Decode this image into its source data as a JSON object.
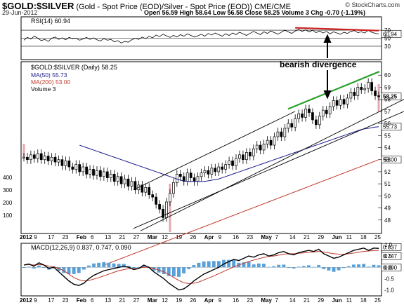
{
  "header": {
    "symbol": "$GOLD:$SILVER",
    "description": "(Gold - Spot Price (EOD)/Silver - Spot Price (EOD)) CME/CME",
    "date": "29-Jun-2012",
    "quote": "Open 56.59  High 58.64  Low 56.58  Close 58.25  Volume 3  Chg -0.70 (-1.19%)",
    "source": "© StockCharts.com"
  },
  "colors": {
    "price_bar": "#000000",
    "ma50": "#1a1a8c",
    "ma200": "#c0392b",
    "volume": "#e6a8b0",
    "trend_green": "#2ca02c",
    "rsi_red": "#cc2222",
    "macd_hist": "#5aa0d8",
    "macd_signal": "#c0392b"
  },
  "annotation": {
    "text": "bearish divergence"
  },
  "chart_data": [
    {
      "type": "line",
      "title": "RSI(14) 60.94",
      "legend": [
        "RSI(14) 60.94"
      ],
      "ylim": [
        0,
        100
      ],
      "ytick_labels": [
        "70",
        "50",
        "30"
      ],
      "badge_value": "60.94",
      "x": [
        0,
        5,
        10,
        15,
        20,
        25,
        30,
        35,
        40,
        45,
        50,
        55,
        60,
        65,
        70,
        75,
        80,
        85,
        90,
        95,
        100,
        105,
        110,
        115,
        120,
        125,
        130,
        135,
        140,
        145,
        150,
        155,
        160,
        165,
        170,
        175,
        180,
        185,
        190,
        195,
        200,
        205,
        210,
        215,
        220,
        225,
        230,
        235,
        240,
        245,
        250,
        255,
        260,
        265,
        270,
        275,
        280,
        285,
        290,
        295,
        300,
        305,
        310,
        315,
        320,
        325,
        330,
        335,
        340,
        345,
        350,
        355,
        360,
        365,
        370,
        375,
        380,
        385,
        390,
        395,
        400,
        405,
        410,
        415,
        420,
        425,
        430,
        435,
        440,
        445,
        450,
        455,
        460,
        465,
        470,
        475,
        480,
        485,
        490,
        495,
        500,
        505,
        510
      ],
      "values": [
        45,
        52,
        48,
        55,
        50,
        44,
        47,
        42,
        50,
        53,
        47,
        51,
        46,
        52,
        49,
        50,
        45,
        48,
        52,
        47,
        51,
        46,
        43,
        49,
        45,
        47,
        41,
        44,
        38,
        42,
        40,
        46,
        50,
        47,
        53,
        49,
        55,
        51,
        58,
        54,
        60,
        56,
        52,
        57,
        53,
        59,
        55,
        61,
        57,
        53,
        56,
        60,
        55,
        62,
        58,
        63,
        59,
        55,
        61,
        57,
        63,
        59,
        65,
        61,
        57,
        62,
        67,
        63,
        59,
        66,
        62,
        68,
        64,
        60,
        65,
        70,
        66,
        62,
        68,
        72,
        67,
        71,
        66,
        70,
        64,
        68,
        63,
        67,
        61,
        66,
        63,
        60,
        65,
        62,
        67,
        69,
        64,
        66,
        63,
        70,
        65,
        62,
        61
      ]
    },
    {
      "type": "line",
      "title": "$GOLD:$SILVER (Daily) 58.25",
      "legend": [
        "$GOLD:$SILVER (Daily) 58.25",
        "MA(50) 55.73",
        "MA(200) 53.00",
        "Volume 3"
      ],
      "ylim": [
        47,
        61
      ],
      "ytick_labels": [
        "48",
        "49",
        "50",
        "51",
        "52",
        "53",
        "54",
        "55",
        "56",
        "57",
        "58",
        "59",
        "60"
      ],
      "volume_tick_labels": [
        "400",
        "300",
        "200",
        "100"
      ],
      "last_value_badges": [
        "58.25",
        "55.73",
        "53.00"
      ],
      "price": [
        53.2,
        53.0,
        53.4,
        53.1,
        53.5,
        53.0,
        53.3,
        52.9,
        53.2,
        52.8,
        53.0,
        52.5,
        52.9,
        52.4,
        52.2,
        52.6,
        52.0,
        52.4,
        51.8,
        52.2,
        51.7,
        52.1,
        51.6,
        52.0,
        51.5,
        51.8,
        51.2,
        51.6,
        51.0,
        51.4,
        50.8,
        51.2,
        50.5,
        50.9,
        50.3,
        50.7,
        50.1,
        49.9,
        49.3,
        48.9,
        48.2,
        49.5,
        50.2,
        51.1,
        51.8,
        51.6,
        51.2,
        51.9,
        51.5,
        51.2,
        51.6,
        51.9,
        52.1,
        51.8,
        52.3,
        52.0,
        52.4,
        52.2,
        52.6,
        52.9,
        52.5,
        53.1,
        53.4,
        53.0,
        53.6,
        53.3,
        53.9,
        54.2,
        53.8,
        54.3,
        54.6,
        54.2,
        54.9,
        55.3,
        54.9,
        55.6,
        56.0,
        55.7,
        56.4,
        56.8,
        56.5,
        57.2,
        56.9,
        56.3,
        55.9,
        56.6,
        57.1,
        56.8,
        57.4,
        57.9,
        57.5,
        58.0,
        57.6,
        58.1,
        58.6,
        58.3,
        59.0,
        58.8,
        58.9,
        59.4,
        58.7,
        58.3,
        58.25
      ],
      "ma50": [
        54.2,
        54.1,
        54.0,
        53.9,
        53.8,
        53.7,
        53.6,
        53.5,
        53.4,
        53.3,
        53.2,
        53.1,
        53.0,
        52.9,
        52.8,
        52.7,
        52.6,
        52.5,
        52.4,
        52.3,
        52.2,
        52.1,
        52.0,
        51.9,
        51.8,
        51.7,
        51.6,
        51.5,
        51.4,
        51.3,
        51.25,
        51.2,
        51.2,
        51.2,
        51.2,
        51.2,
        51.2,
        51.25,
        51.3,
        51.35,
        51.4,
        51.5,
        51.6,
        51.7,
        51.8,
        51.9,
        52.0,
        52.1,
        52.2,
        52.3,
        52.4,
        52.5,
        52.6,
        52.7,
        52.8,
        52.9,
        53.0,
        53.1,
        53.2,
        53.3,
        53.4,
        53.5,
        53.6,
        53.7,
        53.8,
        53.9,
        54.0,
        54.1,
        54.2,
        54.3,
        54.4,
        54.5,
        54.6,
        54.7,
        54.8,
        54.9,
        55.0,
        55.1,
        55.2,
        55.3,
        55.4,
        55.5,
        55.55,
        55.6,
        55.65,
        55.7,
        55.73
      ],
      "ma200": [
        44.2,
        44.4,
        44.6,
        44.8,
        45.0,
        45.2,
        45.4,
        45.6,
        45.8,
        46.0,
        46.2,
        46.4,
        46.6,
        46.8,
        47.0,
        47.2,
        47.4,
        47.6,
        47.8,
        48.0,
        48.2,
        48.4,
        48.6,
        48.8,
        49.0,
        49.2,
        49.4,
        49.6,
        49.8,
        50.0,
        50.2,
        50.4,
        50.6,
        50.8,
        51.0,
        51.2,
        51.4,
        51.6,
        51.8,
        52.0,
        52.2,
        52.4,
        52.6,
        52.8,
        53.0
      ],
      "volume": [
        0,
        0,
        0,
        0,
        0,
        0,
        0,
        0,
        0,
        0,
        0,
        0,
        0,
        0,
        0,
        0,
        0,
        0,
        0,
        0,
        0,
        0,
        0,
        0,
        0,
        0,
        0,
        0,
        0,
        0,
        0,
        0,
        0,
        0,
        0,
        0,
        0,
        0,
        0,
        0,
        0,
        0,
        0,
        0,
        0,
        0,
        0,
        0,
        0,
        0,
        0,
        0,
        0,
        0,
        0,
        0,
        0,
        0,
        0,
        0,
        0,
        0,
        0,
        0,
        0,
        0,
        0,
        0,
        0,
        0,
        0,
        0,
        0,
        0,
        0,
        0,
        0,
        0,
        0,
        0,
        0,
        0,
        0,
        0,
        0,
        0,
        0,
        0,
        0,
        0,
        0,
        0,
        0,
        0,
        0,
        0,
        0,
        0,
        0,
        0,
        0,
        0,
        3
      ]
    },
    {
      "type": "line",
      "title": "MACD(12,26,9) 0.837, 0.747, 0.090",
      "legend": [
        "MACD(12,26,9) 0.837, 0.747, 0.090"
      ],
      "ylim": [
        -1.2,
        1.0
      ],
      "ytick_labels": [
        "1.0",
        "0.5",
        "0.0",
        "-0.5",
        "-1.0"
      ],
      "last_value_badges": [
        "0.837",
        "0.747",
        "0.090"
      ],
      "macd": [
        0.1,
        0.15,
        0.05,
        0.2,
        0.1,
        -0.05,
        0.0,
        -0.2,
        -0.4,
        -0.6,
        -0.75,
        -0.8,
        -0.7,
        -0.5,
        -0.35,
        -0.25,
        -0.15,
        -0.1,
        -0.05,
        0.0,
        0.05,
        0.0,
        -0.1,
        -0.05,
        0.1,
        0.0,
        -0.2,
        -0.35,
        -0.5,
        -0.7,
        -0.85,
        -1.0,
        -0.95,
        -0.8,
        -0.6,
        -0.45,
        -0.3,
        -0.2,
        -0.1,
        0.0,
        0.15,
        0.25,
        0.35,
        0.3,
        0.4,
        0.5,
        0.45,
        0.55,
        0.6,
        0.5,
        0.55,
        0.65,
        0.7,
        0.6,
        0.55,
        0.65,
        0.7,
        0.75,
        0.7,
        0.8,
        0.6,
        0.5,
        0.4,
        0.45,
        0.55,
        0.65,
        0.75,
        0.8,
        0.85,
        0.75,
        0.85,
        0.837
      ],
      "signal": [
        0.1,
        0.12,
        0.1,
        0.12,
        0.1,
        0.05,
        0.03,
        -0.05,
        -0.15,
        -0.3,
        -0.45,
        -0.55,
        -0.6,
        -0.58,
        -0.52,
        -0.45,
        -0.38,
        -0.3,
        -0.22,
        -0.15,
        -0.1,
        -0.06,
        -0.05,
        -0.04,
        0.0,
        0.0,
        -0.05,
        -0.12,
        -0.2,
        -0.32,
        -0.45,
        -0.58,
        -0.68,
        -0.72,
        -0.7,
        -0.65,
        -0.56,
        -0.47,
        -0.38,
        -0.28,
        -0.18,
        -0.08,
        0.02,
        0.1,
        0.18,
        0.26,
        0.32,
        0.38,
        0.44,
        0.48,
        0.5,
        0.54,
        0.58,
        0.6,
        0.6,
        0.62,
        0.64,
        0.66,
        0.68,
        0.7,
        0.68,
        0.64,
        0.6,
        0.58,
        0.58,
        0.6,
        0.63,
        0.67,
        0.7,
        0.72,
        0.74,
        0.747
      ],
      "histogram": [
        0.0,
        0.03,
        -0.05,
        0.08,
        0.0,
        -0.1,
        -0.03,
        -0.15,
        -0.25,
        -0.3,
        -0.3,
        -0.25,
        -0.1,
        0.08,
        0.17,
        0.2,
        0.23,
        0.2,
        0.17,
        0.15,
        0.15,
        0.06,
        -0.05,
        -0.01,
        0.1,
        0.0,
        -0.15,
        -0.23,
        -0.3,
        -0.38,
        -0.4,
        -0.42,
        -0.27,
        -0.08,
        0.1,
        0.2,
        0.26,
        0.27,
        0.28,
        0.28,
        0.33,
        0.33,
        0.33,
        0.2,
        0.22,
        0.24,
        0.13,
        0.17,
        0.16,
        0.02,
        0.05,
        0.11,
        0.12,
        0.0,
        -0.05,
        0.03,
        0.06,
        0.09,
        0.02,
        0.1,
        -0.08,
        -0.14,
        -0.2,
        -0.13,
        -0.03,
        0.05,
        0.12,
        0.13,
        0.15,
        0.03,
        0.11,
        0.09
      ]
    }
  ],
  "xaxis_labels": [
    "2012",
    "9",
    "17",
    "23",
    "Feb",
    "6",
    "13",
    "21",
    "27",
    "Mar",
    "12",
    "19",
    "26",
    "Apr",
    "9",
    "16",
    "23",
    "May",
    "7",
    "14",
    "21",
    "29",
    "Jun",
    "11",
    "18",
    "25"
  ]
}
